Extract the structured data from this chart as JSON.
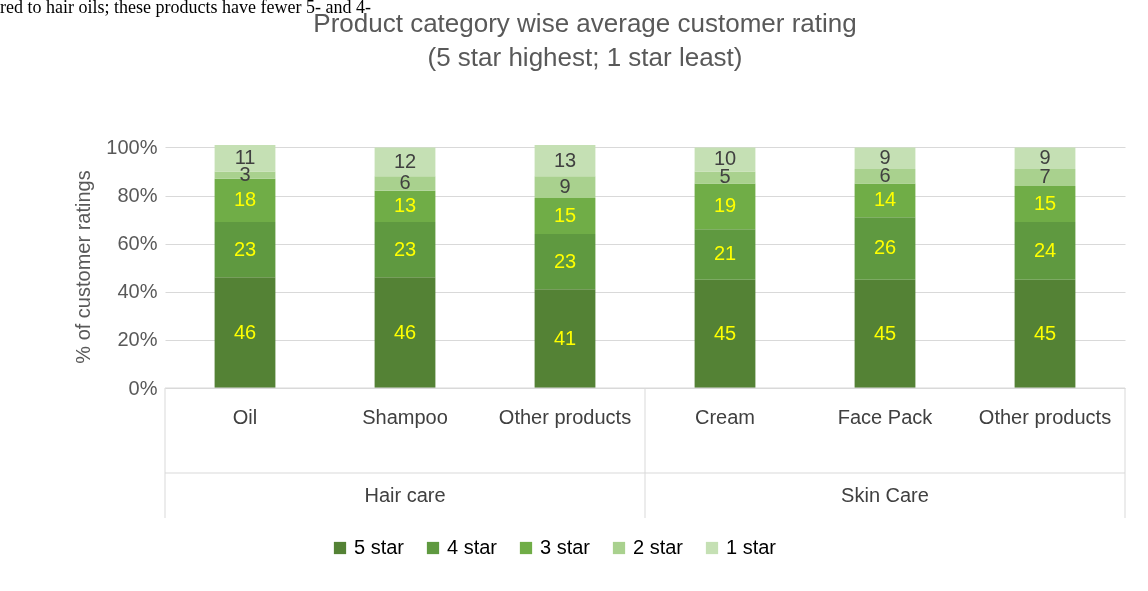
{
  "chart_data": {
    "type": "bar",
    "stacked": true,
    "title": "Product category wise average customer rating\n(5 star highest; 1 star least)",
    "ylabel": "% of customer ratings",
    "categories": [
      "Oil",
      "Shampoo",
      "Other products",
      "Cream",
      "Face Pack",
      "Other products"
    ],
    "series": [
      {
        "name": "5 star",
        "color": "#548235",
        "values": [
          46,
          46,
          41,
          45,
          45,
          45
        ]
      },
      {
        "name": "4 star",
        "color": "#5f9940",
        "values": [
          23,
          23,
          23,
          21,
          26,
          24
        ]
      },
      {
        "name": "3 star",
        "color": "#70ad47",
        "values": [
          18,
          13,
          15,
          19,
          14,
          15
        ]
      },
      {
        "name": "2 star",
        "color": "#a9d18e",
        "values": [
          3,
          6,
          9,
          5,
          6,
          7
        ]
      },
      {
        "name": "1 star",
        "color": "#c5e0b4",
        "values": [
          11,
          12,
          13,
          10,
          9,
          9
        ]
      }
    ],
    "ylim": [
      0,
      101
    ],
    "yticks": [
      {
        "value": 0,
        "label": "0%"
      },
      {
        "value": 20,
        "label": "20%"
      },
      {
        "value": 40,
        "label": "40%"
      },
      {
        "value": 60,
        "label": "60%"
      },
      {
        "value": 80,
        "label": "80%"
      },
      {
        "value": 100,
        "label": "100%"
      }
    ],
    "grid": "y",
    "legend": "bottom",
    "data_labels": true,
    "annotations": [
      "red to hair oils; these products have fewer 5- and 4-",
      "Hair care",
      "Skin Care"
    ]
  }
}
